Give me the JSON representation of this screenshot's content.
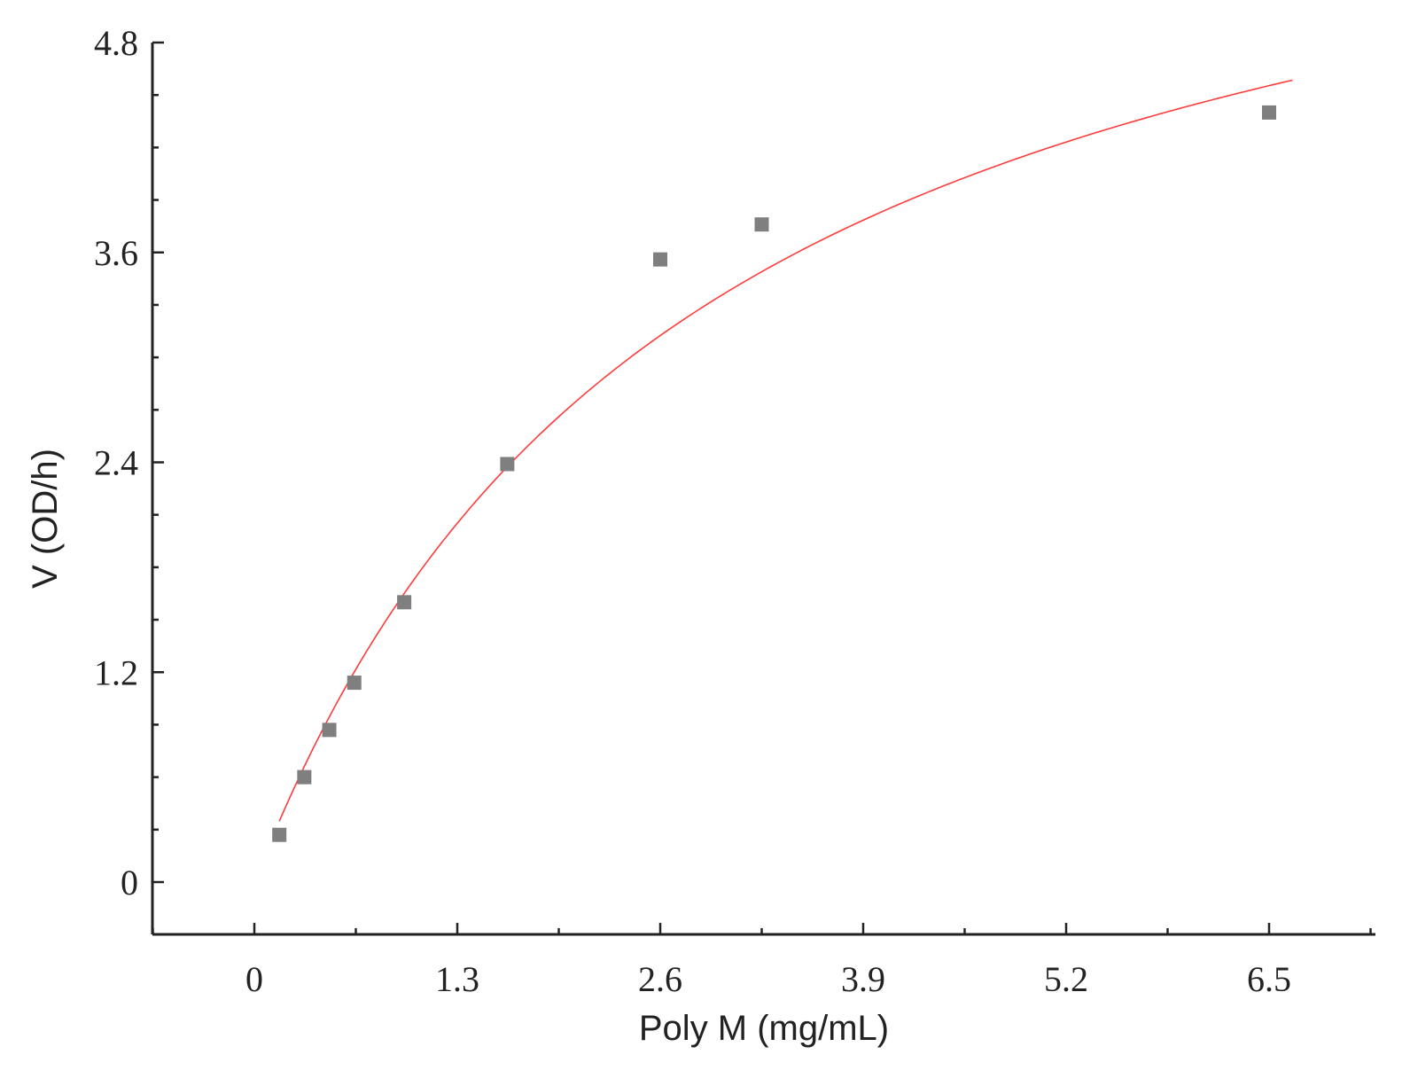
{
  "chart_data": {
    "type": "scatter",
    "title": "",
    "xlabel": "Poly M (mg/mL)",
    "ylabel": "V (OD/h)",
    "xlim": [
      -0.65,
      7.2
    ],
    "ylim": [
      -0.3,
      4.8
    ],
    "x_ticks": [
      "0",
      "1.3",
      "2.6",
      "3.9",
      "5.2",
      "6.5"
    ],
    "y_ticks": [
      "0",
      "1.2",
      "2.4",
      "3.6",
      "4.8"
    ],
    "x_tick_values": [
      0,
      1.3,
      2.6,
      3.9,
      5.2,
      6.5
    ],
    "y_tick_values": [
      0,
      1.2,
      2.4,
      3.6,
      4.8
    ],
    "series": [
      {
        "marker": "square",
        "color": "#7f7f7f",
        "x": [
          0.16,
          0.32,
          0.48,
          0.64,
          0.96,
          1.62,
          2.6,
          3.25,
          6.5
        ],
        "y": [
          0.27,
          0.6,
          0.87,
          1.14,
          1.6,
          2.39,
          3.56,
          3.76,
          4.4
        ]
      }
    ],
    "fit": {
      "type": "michaelis-menten",
      "vmax": 6.55,
      "km": 2.85,
      "x_range": [
        0.16,
        6.65
      ],
      "color": "#ff3b3b"
    },
    "grid": false,
    "legend": "none"
  }
}
